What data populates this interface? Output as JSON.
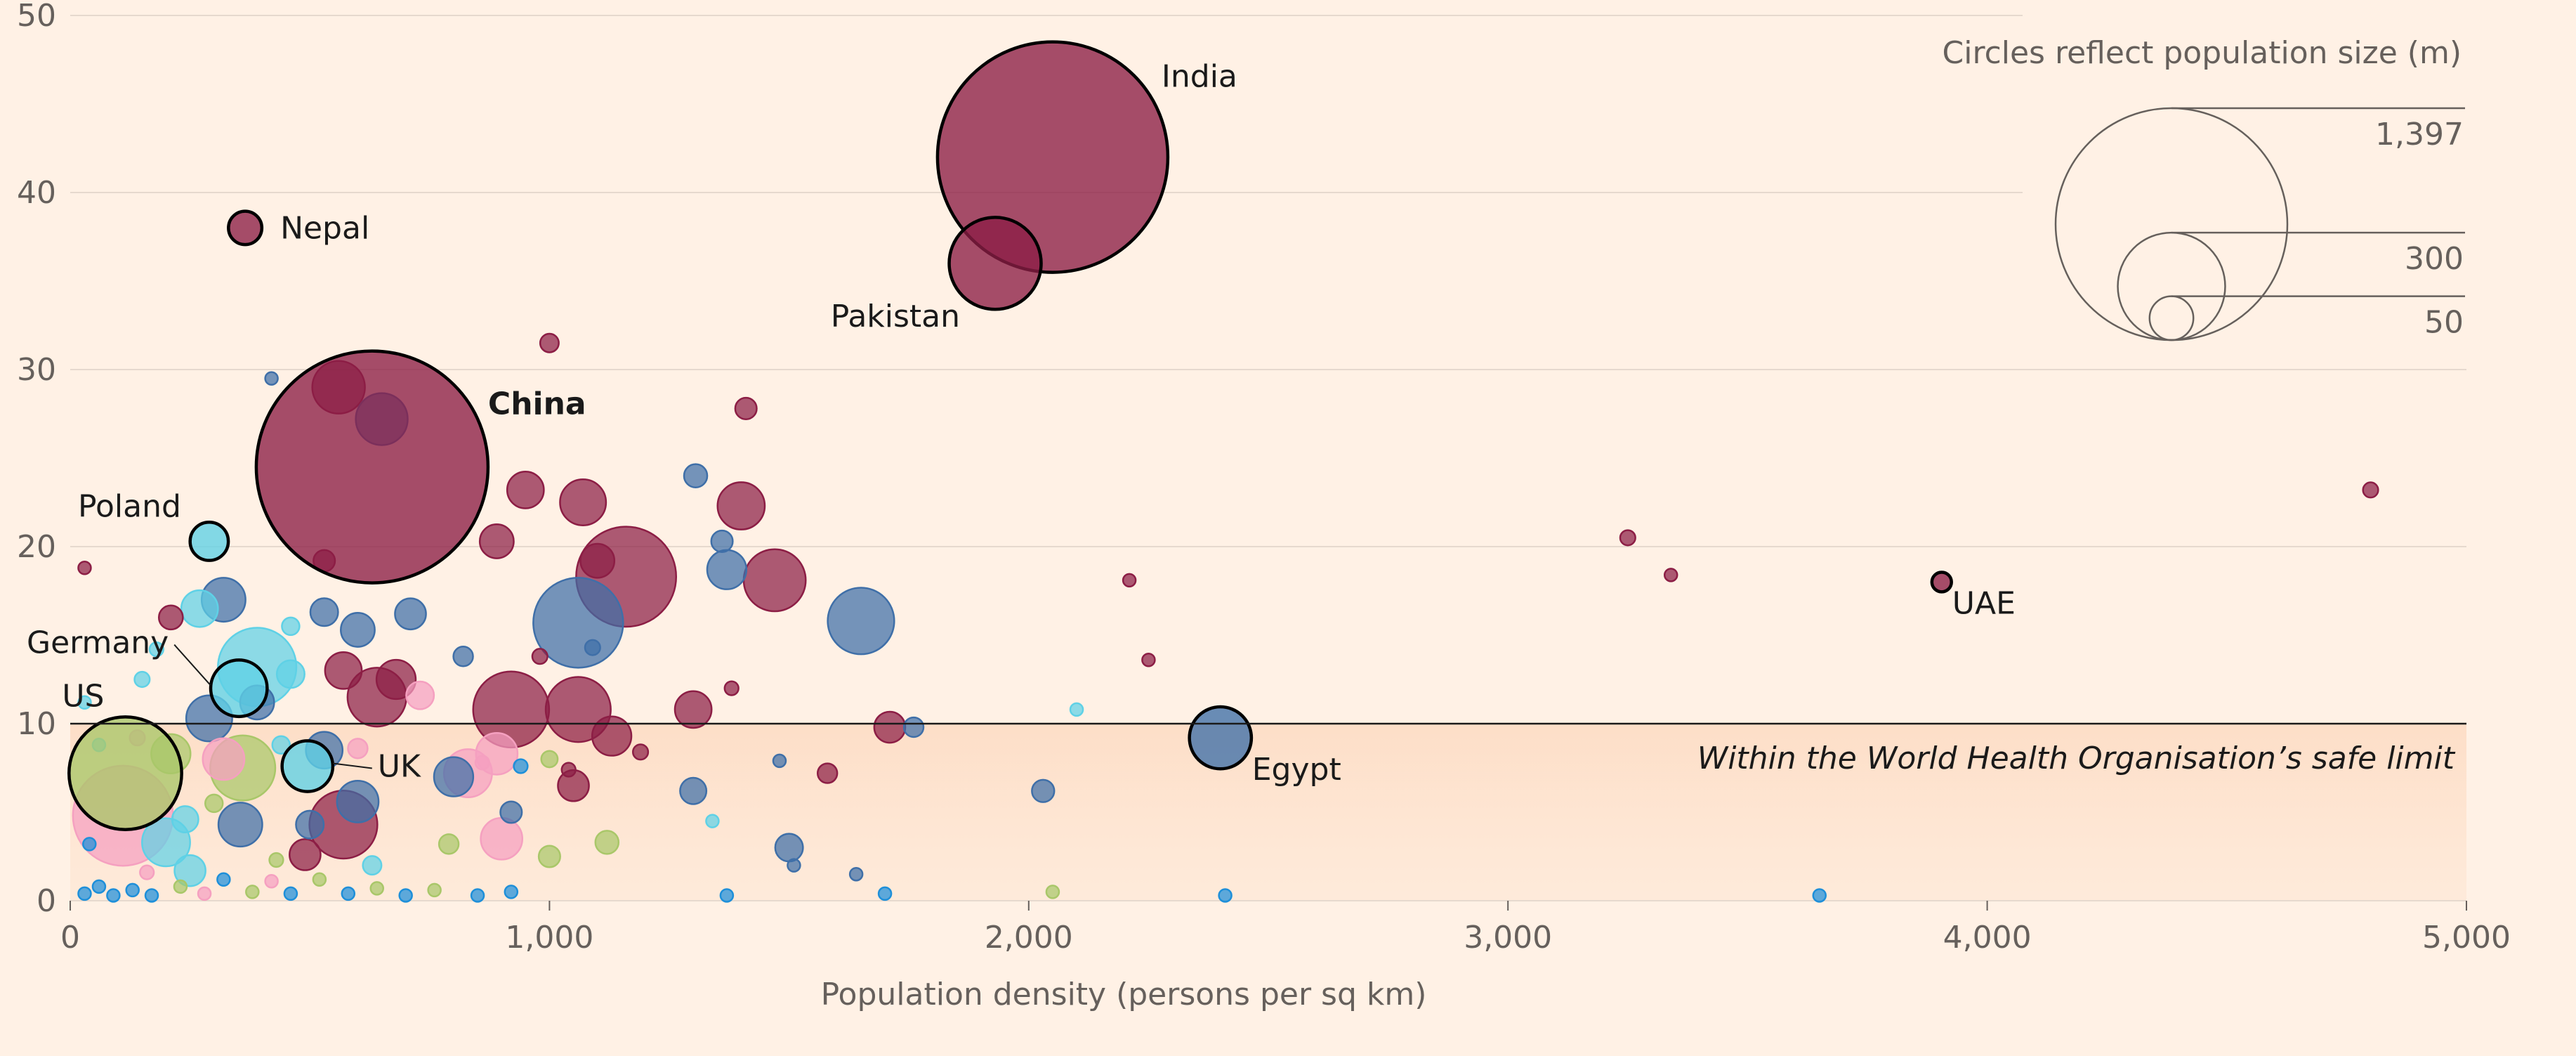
{
  "chart_data": {
    "type": "scatter",
    "title": "",
    "xlabel": "Population density (persons per sq km)",
    "ylabel": "",
    "xlim": [
      0,
      5000
    ],
    "ylim": [
      0,
      50
    ],
    "x_ticks": [
      0,
      1000,
      2000,
      3000,
      4000,
      5000
    ],
    "x_tick_labels": [
      "0",
      "1,000",
      "2,000",
      "3,000",
      "4,000",
      "5,000"
    ],
    "y_ticks": [
      0,
      10,
      20,
      30,
      40,
      50
    ],
    "y_tick_labels": [
      "0",
      "10",
      "20",
      "30",
      "40",
      "50"
    ],
    "grid": "horizontal",
    "threshold": {
      "y": 10,
      "label": "Within the World Health Organisation’s safe limit"
    },
    "size_legend": {
      "title": "Circles reflect population size (m)",
      "values": [
        1397,
        300,
        50
      ],
      "labels": [
        "1,397",
        "300",
        "50"
      ],
      "placement": "top-right"
    },
    "colors": {
      "maroon": "#8C1E45",
      "blue": "#3F6FA8",
      "cyan": "#5FD1E6",
      "pink": "#F5A0C0",
      "green": "#A9C769",
      "ltblue": "#1E8FD9"
    },
    "labeled_points": [
      {
        "name": "India",
        "x": 2050,
        "y": 42,
        "pop": 1380,
        "color": "maroon"
      },
      {
        "name": "Pakistan",
        "x": 1930,
        "y": 36,
        "pop": 220,
        "color": "maroon"
      },
      {
        "name": "Nepal",
        "x": 365,
        "y": 38,
        "pop": 29,
        "color": "maroon"
      },
      {
        "name": "China",
        "x": 630,
        "y": 24.5,
        "pop": 1397,
        "color": "maroon",
        "bold": true
      },
      {
        "name": "Poland",
        "x": 290,
        "y": 20.3,
        "pop": 38,
        "color": "cyan"
      },
      {
        "name": "Germany",
        "x": 352,
        "y": 12,
        "pop": 83,
        "color": "cyan"
      },
      {
        "name": "US",
        "x": 115,
        "y": 7.2,
        "pop": 330,
        "color": "green"
      },
      {
        "name": "UK",
        "x": 495,
        "y": 7.6,
        "pop": 67,
        "color": "cyan"
      },
      {
        "name": "Egypt",
        "x": 2400,
        "y": 9.2,
        "pop": 100,
        "color": "blue"
      },
      {
        "name": "UAE",
        "x": 3905,
        "y": 18,
        "pop": 10,
        "color": "maroon"
      }
    ],
    "points": [
      {
        "x": 560,
        "y": 29,
        "pop": 72,
        "color": "maroon"
      },
      {
        "x": 650,
        "y": 27.2,
        "pop": 70,
        "color": "blue"
      },
      {
        "x": 1000,
        "y": 31.5,
        "pop": 9,
        "color": "maroon"
      },
      {
        "x": 1410,
        "y": 27.8,
        "pop": 12,
        "color": "maroon"
      },
      {
        "x": 950,
        "y": 23.2,
        "pop": 35,
        "color": "maroon"
      },
      {
        "x": 1070,
        "y": 22.5,
        "pop": 55,
        "color": "maroon"
      },
      {
        "x": 1305,
        "y": 24,
        "pop": 14,
        "color": "blue"
      },
      {
        "x": 1400,
        "y": 22.3,
        "pop": 58,
        "color": "maroon"
      },
      {
        "x": 1160,
        "y": 18.3,
        "pop": 260,
        "color": "maroon"
      },
      {
        "x": 890,
        "y": 20.3,
        "pop": 30,
        "color": "maroon"
      },
      {
        "x": 1360,
        "y": 20.3,
        "pop": 12,
        "color": "blue"
      },
      {
        "x": 1370,
        "y": 18.7,
        "pop": 40,
        "color": "blue"
      },
      {
        "x": 1100,
        "y": 19.2,
        "pop": 30,
        "color": "maroon"
      },
      {
        "x": 1470,
        "y": 18.1,
        "pop": 100,
        "color": "maroon"
      },
      {
        "x": 1650,
        "y": 15.8,
        "pop": 115,
        "color": "blue"
      },
      {
        "x": 1060,
        "y": 15.7,
        "pop": 210,
        "color": "blue"
      },
      {
        "x": 270,
        "y": 16.5,
        "pop": 35,
        "color": "cyan"
      },
      {
        "x": 320,
        "y": 17,
        "pop": 50,
        "color": "blue"
      },
      {
        "x": 530,
        "y": 16.3,
        "pop": 20,
        "color": "blue"
      },
      {
        "x": 600,
        "y": 15.3,
        "pop": 30,
        "color": "blue"
      },
      {
        "x": 710,
        "y": 16.2,
        "pop": 25,
        "color": "blue"
      },
      {
        "x": 390,
        "y": 13.2,
        "pop": 160,
        "color": "cyan"
      },
      {
        "x": 570,
        "y": 13,
        "pop": 35,
        "color": "maroon"
      },
      {
        "x": 640,
        "y": 11.5,
        "pop": 90,
        "color": "maroon"
      },
      {
        "x": 920,
        "y": 10.8,
        "pop": 150,
        "color": "maroon"
      },
      {
        "x": 1060,
        "y": 10.8,
        "pop": 110,
        "color": "maroon"
      },
      {
        "x": 1300,
        "y": 10.8,
        "pop": 35,
        "color": "maroon"
      },
      {
        "x": 1130,
        "y": 9.3,
        "pop": 40,
        "color": "maroon"
      },
      {
        "x": 1710,
        "y": 9.8,
        "pop": 25,
        "color": "maroon"
      },
      {
        "x": 1760,
        "y": 9.8,
        "pop": 10,
        "color": "blue"
      },
      {
        "x": 290,
        "y": 10.3,
        "pop": 55,
        "color": "blue"
      },
      {
        "x": 390,
        "y": 11.2,
        "pop": 30,
        "color": "blue"
      },
      {
        "x": 730,
        "y": 11.6,
        "pop": 20,
        "color": "pink"
      },
      {
        "x": 210,
        "y": 8.3,
        "pop": 40,
        "color": "green"
      },
      {
        "x": 320,
        "y": 8,
        "pop": 45,
        "color": "pink"
      },
      {
        "x": 360,
        "y": 7.5,
        "pop": 110,
        "color": "green"
      },
      {
        "x": 800,
        "y": 7,
        "pop": 40,
        "color": "blue"
      },
      {
        "x": 830,
        "y": 7.2,
        "pop": 60,
        "color": "pink"
      },
      {
        "x": 890,
        "y": 8.3,
        "pop": 45,
        "color": "pink"
      },
      {
        "x": 1050,
        "y": 6.5,
        "pop": 25,
        "color": "maroon"
      },
      {
        "x": 1300,
        "y": 6.2,
        "pop": 18,
        "color": "blue"
      },
      {
        "x": 1580,
        "y": 7.2,
        "pop": 10,
        "color": "maroon"
      },
      {
        "x": 2030,
        "y": 6.2,
        "pop": 13,
        "color": "blue"
      },
      {
        "x": 600,
        "y": 5.6,
        "pop": 45,
        "color": "blue"
      },
      {
        "x": 570,
        "y": 4.3,
        "pop": 120,
        "color": "maroon"
      },
      {
        "x": 500,
        "y": 4.3,
        "pop": 20,
        "color": "blue"
      },
      {
        "x": 355,
        "y": 4.3,
        "pop": 50,
        "color": "blue"
      },
      {
        "x": 240,
        "y": 4.6,
        "pop": 18,
        "color": "cyan"
      },
      {
        "x": 110,
        "y": 4.8,
        "pop": 260,
        "color": "pink"
      },
      {
        "x": 200,
        "y": 3.3,
        "pop": 60,
        "color": "cyan"
      },
      {
        "x": 250,
        "y": 1.7,
        "pop": 25,
        "color": "cyan"
      },
      {
        "x": 490,
        "y": 2.6,
        "pop": 25,
        "color": "maroon"
      },
      {
        "x": 900,
        "y": 3.5,
        "pop": 45,
        "color": "pink"
      },
      {
        "x": 920,
        "y": 5,
        "pop": 12,
        "color": "blue"
      },
      {
        "x": 790,
        "y": 3.2,
        "pop": 10,
        "color": "green"
      },
      {
        "x": 1000,
        "y": 2.5,
        "pop": 12,
        "color": "green"
      },
      {
        "x": 1120,
        "y": 3.3,
        "pop": 14,
        "color": "green"
      },
      {
        "x": 1500,
        "y": 3,
        "pop": 20,
        "color": "blue"
      },
      {
        "x": 630,
        "y": 2,
        "pop": 9,
        "color": "cyan"
      },
      {
        "x": 1000,
        "y": 8,
        "pop": 7,
        "color": "green"
      },
      {
        "x": 2250,
        "y": 13.6,
        "pop": 3,
        "color": "maroon"
      },
      {
        "x": 2210,
        "y": 18.1,
        "pop": 3,
        "color": "maroon"
      },
      {
        "x": 3250,
        "y": 20.5,
        "pop": 6,
        "color": "maroon"
      },
      {
        "x": 3340,
        "y": 18.4,
        "pop": 3,
        "color": "maroon"
      },
      {
        "x": 4800,
        "y": 23.2,
        "pop": 6,
        "color": "maroon"
      },
      {
        "x": 30,
        "y": 18.8,
        "pop": 3,
        "color": "maroon"
      },
      {
        "x": 210,
        "y": 16,
        "pop": 15,
        "color": "maroon"
      },
      {
        "x": 420,
        "y": 29.5,
        "pop": 3,
        "color": "blue"
      },
      {
        "x": 2100,
        "y": 10.8,
        "pop": 3,
        "color": "cyan"
      },
      {
        "x": 1510,
        "y": 2,
        "pop": 3,
        "color": "blue"
      },
      {
        "x": 1380,
        "y": 12,
        "pop": 5,
        "color": "maroon"
      },
      {
        "x": 980,
        "y": 13.8,
        "pop": 6,
        "color": "maroon"
      },
      {
        "x": 1090,
        "y": 14.3,
        "pop": 6,
        "color": "blue"
      },
      {
        "x": 820,
        "y": 13.8,
        "pop": 10,
        "color": "blue"
      },
      {
        "x": 1190,
        "y": 8.4,
        "pop": 6,
        "color": "maroon"
      },
      {
        "x": 1040,
        "y": 7.4,
        "pop": 5,
        "color": "maroon"
      },
      {
        "x": 1480,
        "y": 7.9,
        "pop": 3,
        "color": "blue"
      },
      {
        "x": 1340,
        "y": 4.5,
        "pop": 3,
        "color": "cyan"
      },
      {
        "x": 1640,
        "y": 1.5,
        "pop": 3,
        "color": "blue"
      },
      {
        "x": 1700,
        "y": 0.4,
        "pop": 3,
        "color": "ltblue"
      },
      {
        "x": 2050,
        "y": 0.5,
        "pop": 3,
        "color": "green"
      },
      {
        "x": 2410,
        "y": 0.3,
        "pop": 3,
        "color": "ltblue"
      },
      {
        "x": 3650,
        "y": 0.3,
        "pop": 3,
        "color": "ltblue"
      },
      {
        "x": 1370,
        "y": 0.3,
        "pop": 3,
        "color": "ltblue"
      },
      {
        "x": 30,
        "y": 0.4,
        "pop": 3,
        "color": "ltblue"
      },
      {
        "x": 60,
        "y": 0.8,
        "pop": 3,
        "color": "ltblue"
      },
      {
        "x": 90,
        "y": 0.3,
        "pop": 3,
        "color": "ltblue"
      },
      {
        "x": 130,
        "y": 0.6,
        "pop": 3,
        "color": "ltblue"
      },
      {
        "x": 170,
        "y": 0.3,
        "pop": 3,
        "color": "ltblue"
      },
      {
        "x": 230,
        "y": 0.8,
        "pop": 4,
        "color": "green"
      },
      {
        "x": 280,
        "y": 0.4,
        "pop": 3,
        "color": "pink"
      },
      {
        "x": 320,
        "y": 1.2,
        "pop": 3,
        "color": "ltblue"
      },
      {
        "x": 380,
        "y": 0.5,
        "pop": 4,
        "color": "green"
      },
      {
        "x": 420,
        "y": 1.1,
        "pop": 3,
        "color": "pink"
      },
      {
        "x": 460,
        "y": 0.4,
        "pop": 3,
        "color": "ltblue"
      },
      {
        "x": 520,
        "y": 1.2,
        "pop": 4,
        "color": "green"
      },
      {
        "x": 580,
        "y": 0.4,
        "pop": 3,
        "color": "ltblue"
      },
      {
        "x": 640,
        "y": 0.7,
        "pop": 3,
        "color": "green"
      },
      {
        "x": 700,
        "y": 0.3,
        "pop": 3,
        "color": "ltblue"
      },
      {
        "x": 760,
        "y": 0.6,
        "pop": 3,
        "color": "green"
      },
      {
        "x": 850,
        "y": 0.3,
        "pop": 3,
        "color": "ltblue"
      },
      {
        "x": 920,
        "y": 0.5,
        "pop": 3,
        "color": "ltblue"
      },
      {
        "x": 40,
        "y": 3.2,
        "pop": 4,
        "color": "ltblue"
      },
      {
        "x": 60,
        "y": 8.8,
        "pop": 4,
        "color": "cyan"
      },
      {
        "x": 30,
        "y": 11.2,
        "pop": 4,
        "color": "cyan"
      },
      {
        "x": 150,
        "y": 12.5,
        "pop": 6,
        "color": "cyan"
      },
      {
        "x": 460,
        "y": 12.8,
        "pop": 20,
        "color": "cyan"
      },
      {
        "x": 530,
        "y": 19.2,
        "pop": 12,
        "color": "maroon"
      },
      {
        "x": 460,
        "y": 15.5,
        "pop": 8,
        "color": "cyan"
      },
      {
        "x": 180,
        "y": 14.2,
        "pop": 5,
        "color": "cyan"
      },
      {
        "x": 140,
        "y": 9.2,
        "pop": 6,
        "color": "pink"
      },
      {
        "x": 440,
        "y": 8.8,
        "pop": 8,
        "color": "cyan"
      },
      {
        "x": 530,
        "y": 8.5,
        "pop": 35,
        "color": "blue"
      },
      {
        "x": 600,
        "y": 8.6,
        "pop": 10,
        "color": "pink"
      },
      {
        "x": 860,
        "y": 7.8,
        "pop": 5,
        "color": "pink"
      },
      {
        "x": 940,
        "y": 7.6,
        "pop": 5,
        "color": "ltblue"
      },
      {
        "x": 300,
        "y": 5.5,
        "pop": 8,
        "color": "green"
      },
      {
        "x": 430,
        "y": 2.3,
        "pop": 5,
        "color": "green"
      },
      {
        "x": 160,
        "y": 1.6,
        "pop": 5,
        "color": "pink"
      },
      {
        "x": 680,
        "y": 12.5,
        "pop": 40,
        "color": "maroon"
      }
    ]
  }
}
